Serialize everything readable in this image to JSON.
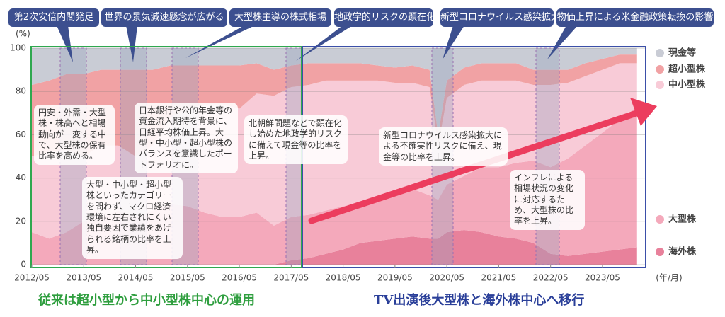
{
  "chart_data": {
    "type": "stacked_area",
    "y_unit": "(%)",
    "x_unit": "(年/月)",
    "x": [
      "2012/05",
      "2012/09",
      "2013/01",
      "2013/05",
      "2013/09",
      "2014/01",
      "2014/05",
      "2014/09",
      "2015/01",
      "2015/05",
      "2015/09",
      "2016/01",
      "2016/05",
      "2016/09",
      "2017/01",
      "2017/05",
      "2017/09",
      "2018/01",
      "2018/05",
      "2018/09",
      "2019/01",
      "2019/05",
      "2019/09",
      "2020/01",
      "2020/03",
      "2020/05",
      "2020/09",
      "2021/01",
      "2021/05",
      "2021/09",
      "2022/01",
      "2022/05",
      "2022/09",
      "2023/01",
      "2023/05",
      "2023/09",
      "2024/01"
    ],
    "series": [
      {
        "name": "海外株",
        "color": "#e8819b",
        "values": [
          0,
          0,
          0,
          0,
          0,
          0,
          0,
          0,
          0,
          0,
          0,
          0,
          0,
          0,
          0,
          2,
          3,
          5,
          7,
          10,
          11,
          12,
          13,
          12,
          12,
          15,
          16,
          15,
          13,
          12,
          10,
          5,
          4,
          5,
          6,
          7,
          8
        ]
      },
      {
        "name": "大型株",
        "color": "#f4a9bb",
        "values": [
          15,
          12,
          15,
          20,
          22,
          25,
          22,
          25,
          28,
          27,
          24,
          22,
          22,
          24,
          18,
          20,
          20,
          20,
          20,
          18,
          20,
          20,
          22,
          20,
          18,
          22,
          25,
          30,
          32,
          35,
          38,
          40,
          45,
          50,
          55,
          60,
          65
        ]
      },
      {
        "name": "中小型株",
        "color": "#f8cbd7",
        "values": [
          35,
          40,
          38,
          30,
          33,
          30,
          28,
          30,
          40,
          45,
          50,
          52,
          50,
          55,
          60,
          60,
          60,
          60,
          58,
          57,
          54,
          52,
          49,
          50,
          25,
          40,
          42,
          40,
          40,
          38,
          35,
          38,
          35,
          32,
          29,
          26,
          20
        ]
      },
      {
        "name": "超小型株",
        "color": "#f1a2a4",
        "values": [
          33,
          33,
          35,
          38,
          35,
          35,
          40,
          35,
          24,
          20,
          18,
          18,
          20,
          14,
          12,
          10,
          10,
          8,
          8,
          8,
          7,
          7,
          8,
          8,
          5,
          8,
          8,
          8,
          8,
          8,
          7,
          7,
          6,
          6,
          5,
          4,
          4
        ]
      },
      {
        "name": "現金等",
        "color": "#c9ccd5",
        "values": [
          17,
          15,
          12,
          12,
          10,
          10,
          10,
          10,
          8,
          8,
          8,
          8,
          8,
          7,
          10,
          8,
          7,
          7,
          7,
          7,
          8,
          9,
          8,
          10,
          40,
          15,
          9,
          7,
          7,
          7,
          10,
          10,
          10,
          7,
          5,
          3,
          3
        ]
      }
    ],
    "xlim": [
      "2012/05",
      "2024/03"
    ],
    "xticks": [
      "2012/05",
      "2013/05",
      "2014/05",
      "2015/05",
      "2016/05",
      "2017/05",
      "2018/05",
      "2019/05",
      "2020/05",
      "2021/05",
      "2022/05",
      "2023/05"
    ],
    "ylim": [
      0,
      100
    ],
    "yticks": [
      0,
      20,
      40,
      60,
      80,
      100
    ],
    "grid": true,
    "events": [
      "第2次安倍内閣発足",
      "世界の景気減速懸念が広がる",
      "大型株主導の株式相場",
      "地政学的リスクの顕在化",
      "新型コロナウイルス感染拡大",
      "物価上昇による米金融政策転換の影響"
    ],
    "notes": [
      "円安・外需・大型株・株高へと相場動向が一変する中で、大型株の保有比率を高める。",
      "大型・中小型・超小型株といったカテゴリーを問わず、マクロ経済環境に左右されにくい独自要因で業績をあげられる銘柄の比率を上昇。",
      "日本銀行や公的年金等の資金流入期待を背景に、日経平均株価上昇。大型・中小型・超小型株のバランスを意識したポートフォリオに。",
      "北朝鮮問題などで顕在化し始めた地政学的リスクに備えて現金等の比率を上昇。",
      "新型コロナウイルス感染拡大による不確実性リスクに備え、現金等の比率を上昇。",
      "インフレによる相場状況の変化に対応するため、大型株の比率を上昇。"
    ],
    "periods": [
      "従来は超小型から中小型株中心の運用",
      "TV出演後大型株と海外株中心へ移行"
    ]
  }
}
